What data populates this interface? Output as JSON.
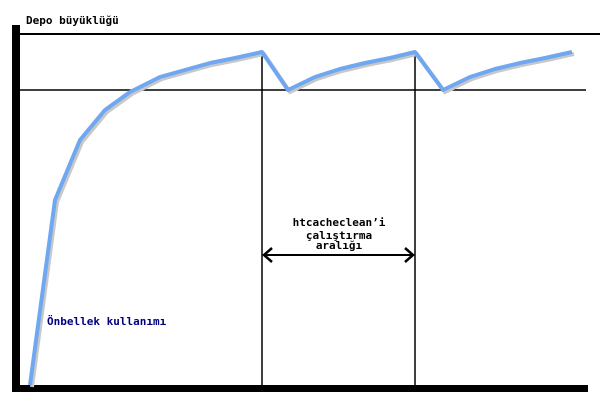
{
  "diagram": {
    "y_axis_label": "Depo büyüklüğü",
    "curve_label": "Önbellek kullanımı",
    "interval_label": [
      "htcacheclean’i",
      "çalıştırma",
      "aralığı"
    ],
    "colors": {
      "curve": "#6fa8f0",
      "curve_label": "#000080",
      "lines": "#000000"
    }
  }
}
